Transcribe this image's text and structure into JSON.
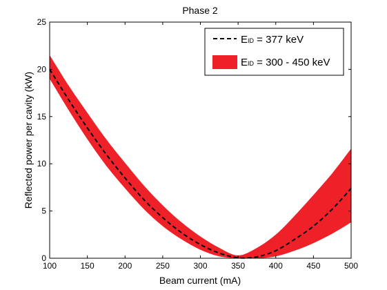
{
  "chart_data": {
    "type": "area",
    "title": "Phase 2",
    "xlabel": "Beam current (mA)",
    "ylabel": "Reflected power per cavity (kW)",
    "xlim": [
      100,
      500
    ],
    "ylim": [
      0,
      25
    ],
    "xticks": [
      "100",
      "150",
      "200",
      "250",
      "300",
      "350",
      "400",
      "450",
      "500"
    ],
    "yticks": [
      "0",
      "5",
      "10",
      "15",
      "20",
      "25"
    ],
    "grid": false,
    "legend_position": "top-right",
    "series": [
      {
        "name_main": "E",
        "name_sub": "ID",
        "name_rest": " = 377 keV",
        "style": "dashed-line",
        "color": "#000000",
        "x": [
          100,
          125,
          150,
          175,
          200,
          225,
          250,
          275,
          300,
          325,
          350,
          375,
          400,
          425,
          450,
          475,
          500
        ],
        "y": [
          20.0,
          16.8,
          13.8,
          11.0,
          8.5,
          6.2,
          4.3,
          2.7,
          1.45,
          0.55,
          0.05,
          0.15,
          0.8,
          2.0,
          3.4,
          5.2,
          7.4
        ]
      },
      {
        "name_main": "E",
        "name_sub": "ID",
        "name_rest": " = 300 - 450 keV",
        "style": "band",
        "color": "#ee2129",
        "x": [
          100,
          125,
          150,
          175,
          200,
          225,
          250,
          275,
          300,
          325,
          350,
          375,
          400,
          425,
          450,
          475,
          500
        ],
        "lower": [
          19.0,
          15.7,
          12.6,
          9.8,
          7.4,
          5.2,
          3.4,
          2.0,
          0.9,
          0.2,
          0.0,
          0.0,
          0.2,
          0.8,
          1.6,
          2.6,
          3.8
        ],
        "upper": [
          21.5,
          18.3,
          15.4,
          12.6,
          10.1,
          7.7,
          5.6,
          3.8,
          2.3,
          1.1,
          0.3,
          1.1,
          2.5,
          4.5,
          6.7,
          9.0,
          11.6
        ]
      }
    ]
  }
}
